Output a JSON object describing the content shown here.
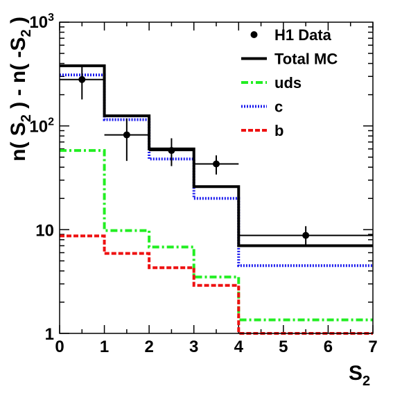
{
  "chart_data": {
    "type": "line",
    "x_scale": "linear",
    "y_scale": "log",
    "xlim": [
      0,
      7
    ],
    "ylim": [
      1,
      1000
    ],
    "bin_edges": [
      0,
      1,
      2,
      3,
      4,
      7
    ],
    "x_ticks": [
      "0",
      "1",
      "2",
      "3",
      "4",
      "5",
      "6",
      "7"
    ],
    "y_ticks": [
      {
        "value": 1,
        "label": "1",
        "exp": ""
      },
      {
        "value": 10,
        "label": "10",
        "exp": ""
      },
      {
        "value": 100,
        "label": "10",
        "exp": "2"
      },
      {
        "value": 1000,
        "label": "10",
        "exp": "3"
      }
    ],
    "xlabel": {
      "base": "S",
      "sub": "2"
    },
    "ylabel": {
      "pre": "n( S",
      "sub1": "2",
      "mid": " ) - n( -S",
      "sub2": "2",
      "post": " )"
    },
    "series": [
      {
        "name": "Total MC",
        "style": "hist-solid",
        "color": "#000000",
        "values": [
          380,
          125,
          60,
          26,
          7
        ]
      },
      {
        "name": "uds",
        "style": "hist-dashdot",
        "color": "#22ee22",
        "values": [
          58,
          9.8,
          6.8,
          3.5,
          1.35
        ]
      },
      {
        "name": "c",
        "style": "hist-dotted",
        "color": "#1a1aee",
        "values": [
          310,
          115,
          48,
          20,
          4.5
        ]
      },
      {
        "name": "b",
        "style": "hist-dashed",
        "color": "#ee1111",
        "values": [
          8.7,
          5.9,
          4.3,
          2.9,
          1.0
        ]
      }
    ],
    "data_points": {
      "name": "H1 Data",
      "color": "#000000",
      "points": [
        {
          "x": 0.5,
          "y": 280,
          "xerr": 0.5,
          "ylow": 180,
          "yhigh": 390
        },
        {
          "x": 1.5,
          "y": 82,
          "xerr": 0.5,
          "ylow": 46,
          "yhigh": 118
        },
        {
          "x": 2.5,
          "y": 58,
          "xerr": 0.5,
          "ylow": 41,
          "yhigh": 76
        },
        {
          "x": 3.5,
          "y": 43,
          "xerr": 0.5,
          "ylow": 34,
          "yhigh": 52
        },
        {
          "x": 5.5,
          "y": 8.8,
          "xerr": 1.5,
          "ylow": 7.2,
          "yhigh": 10.8
        }
      ]
    },
    "legend": {
      "placement": "top-right",
      "entries": [
        {
          "label": "H1 Data",
          "kind": "marker",
          "color": "#000000"
        },
        {
          "label": "Total MC",
          "kind": "hist-solid",
          "color": "#000000"
        },
        {
          "label": "uds",
          "kind": "hist-dashdot",
          "color": "#22ee22"
        },
        {
          "label": "c",
          "kind": "hist-dotted",
          "color": "#1a1aee"
        },
        {
          "label": "b",
          "kind": "hist-dashed",
          "color": "#ee1111"
        }
      ]
    },
    "grid": false
  }
}
